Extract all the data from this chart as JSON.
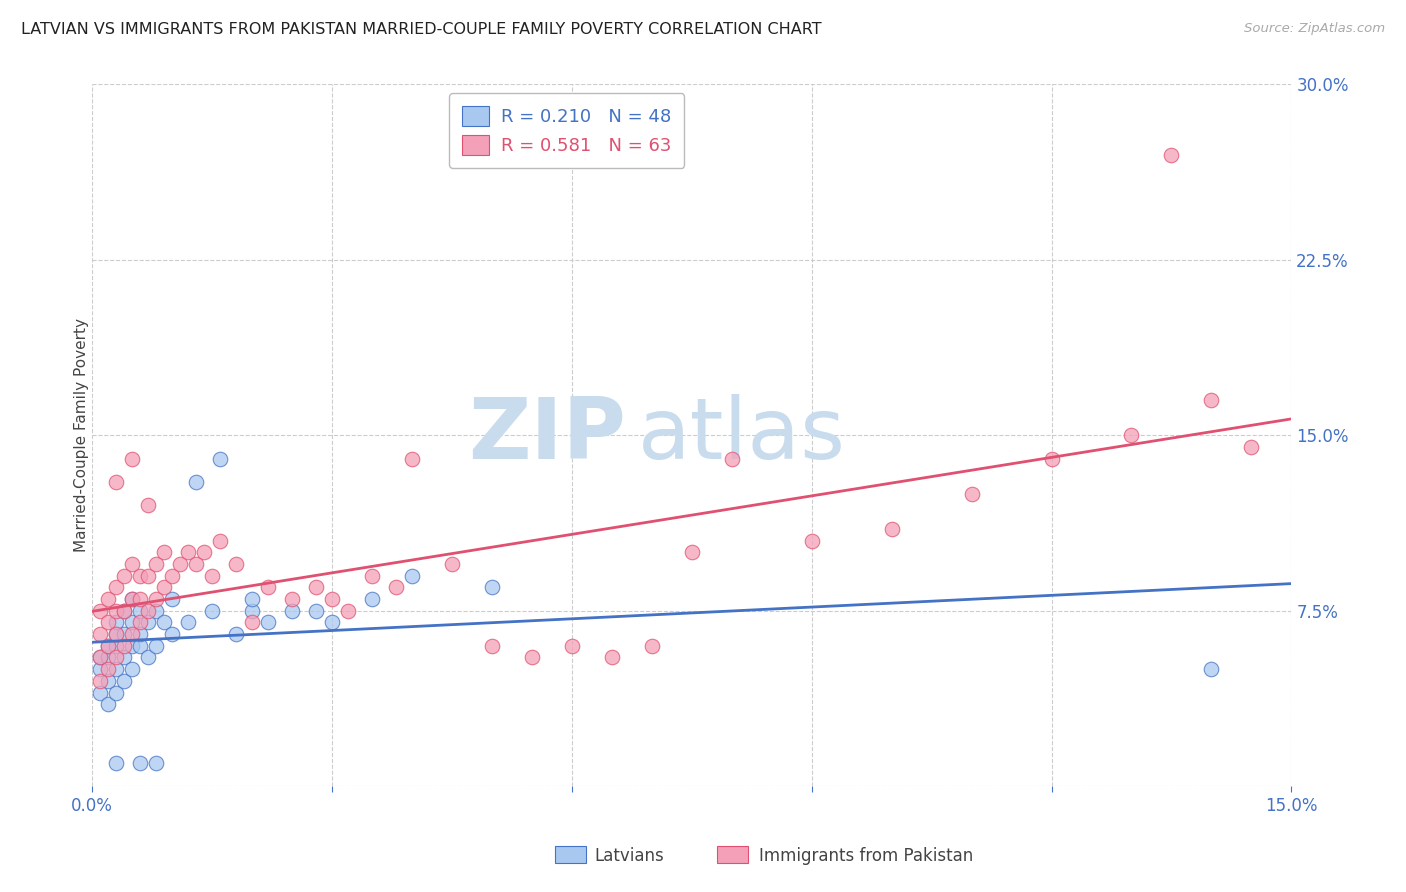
{
  "title": "LATVIAN VS IMMIGRANTS FROM PAKISTAN MARRIED-COUPLE FAMILY POVERTY CORRELATION CHART",
  "source": "Source: ZipAtlas.com",
  "ylabel": "Married-Couple Family Poverty",
  "xlim": [
    0.0,
    0.15
  ],
  "ylim": [
    0.0,
    0.3
  ],
  "xticks": [
    0.0,
    0.03,
    0.06,
    0.09,
    0.12,
    0.15
  ],
  "xtick_labels": [
    "0.0%",
    "",
    "",
    "",
    "",
    "15.0%"
  ],
  "ytick_labels_right": [
    "",
    "7.5%",
    "15.0%",
    "22.5%",
    "30.0%"
  ],
  "yticks_right": [
    0.0,
    0.075,
    0.15,
    0.225,
    0.3
  ],
  "legend_r1": "R = 0.210",
  "legend_n1": "N = 48",
  "legend_r2": "R = 0.581",
  "legend_n2": "N = 63",
  "legend_label1": "Latvians",
  "legend_label2": "Immigrants from Pakistan",
  "color_blue": "#A8C8F0",
  "color_pink": "#F4A0B8",
  "line_color_blue": "#4472C4",
  "line_color_pink": "#E05070",
  "title_color": "#222222",
  "axis_label_color": "#444444",
  "tick_color_right": "#4472C4",
  "grid_color": "#CCCCCC",
  "background_color": "#FFFFFF",
  "latvian_x": [
    0.001,
    0.001,
    0.001,
    0.002,
    0.002,
    0.002,
    0.002,
    0.003,
    0.003,
    0.003,
    0.003,
    0.003,
    0.004,
    0.004,
    0.004,
    0.004,
    0.005,
    0.005,
    0.005,
    0.005,
    0.006,
    0.006,
    0.006,
    0.007,
    0.007,
    0.008,
    0.008,
    0.009,
    0.01,
    0.01,
    0.012,
    0.013,
    0.015,
    0.016,
    0.018,
    0.02,
    0.022,
    0.025,
    0.028,
    0.03,
    0.035,
    0.04,
    0.05,
    0.02,
    0.003,
    0.006,
    0.008,
    0.14
  ],
  "latvian_y": [
    0.04,
    0.05,
    0.055,
    0.035,
    0.045,
    0.055,
    0.06,
    0.04,
    0.05,
    0.06,
    0.065,
    0.07,
    0.045,
    0.055,
    0.065,
    0.075,
    0.05,
    0.06,
    0.07,
    0.08,
    0.06,
    0.065,
    0.075,
    0.055,
    0.07,
    0.06,
    0.075,
    0.07,
    0.065,
    0.08,
    0.07,
    0.13,
    0.075,
    0.14,
    0.065,
    0.075,
    0.07,
    0.075,
    0.075,
    0.07,
    0.08,
    0.09,
    0.085,
    0.08,
    0.01,
    0.01,
    0.01,
    0.05
  ],
  "pakistan_x": [
    0.001,
    0.001,
    0.001,
    0.001,
    0.002,
    0.002,
    0.002,
    0.002,
    0.003,
    0.003,
    0.003,
    0.003,
    0.004,
    0.004,
    0.004,
    0.005,
    0.005,
    0.005,
    0.006,
    0.006,
    0.006,
    0.007,
    0.007,
    0.008,
    0.008,
    0.009,
    0.009,
    0.01,
    0.011,
    0.012,
    0.013,
    0.014,
    0.015,
    0.016,
    0.018,
    0.02,
    0.022,
    0.025,
    0.028,
    0.03,
    0.032,
    0.035,
    0.038,
    0.04,
    0.045,
    0.05,
    0.055,
    0.06,
    0.065,
    0.07,
    0.075,
    0.08,
    0.09,
    0.1,
    0.11,
    0.12,
    0.13,
    0.135,
    0.14,
    0.145,
    0.003,
    0.005,
    0.007
  ],
  "pakistan_y": [
    0.045,
    0.055,
    0.065,
    0.075,
    0.05,
    0.06,
    0.07,
    0.08,
    0.055,
    0.065,
    0.075,
    0.085,
    0.06,
    0.075,
    0.09,
    0.065,
    0.08,
    0.095,
    0.07,
    0.08,
    0.09,
    0.075,
    0.09,
    0.08,
    0.095,
    0.085,
    0.1,
    0.09,
    0.095,
    0.1,
    0.095,
    0.1,
    0.09,
    0.105,
    0.095,
    0.07,
    0.085,
    0.08,
    0.085,
    0.08,
    0.075,
    0.09,
    0.085,
    0.14,
    0.095,
    0.06,
    0.055,
    0.06,
    0.055,
    0.06,
    0.1,
    0.14,
    0.105,
    0.11,
    0.125,
    0.14,
    0.15,
    0.27,
    0.165,
    0.145,
    0.13,
    0.14,
    0.12
  ]
}
